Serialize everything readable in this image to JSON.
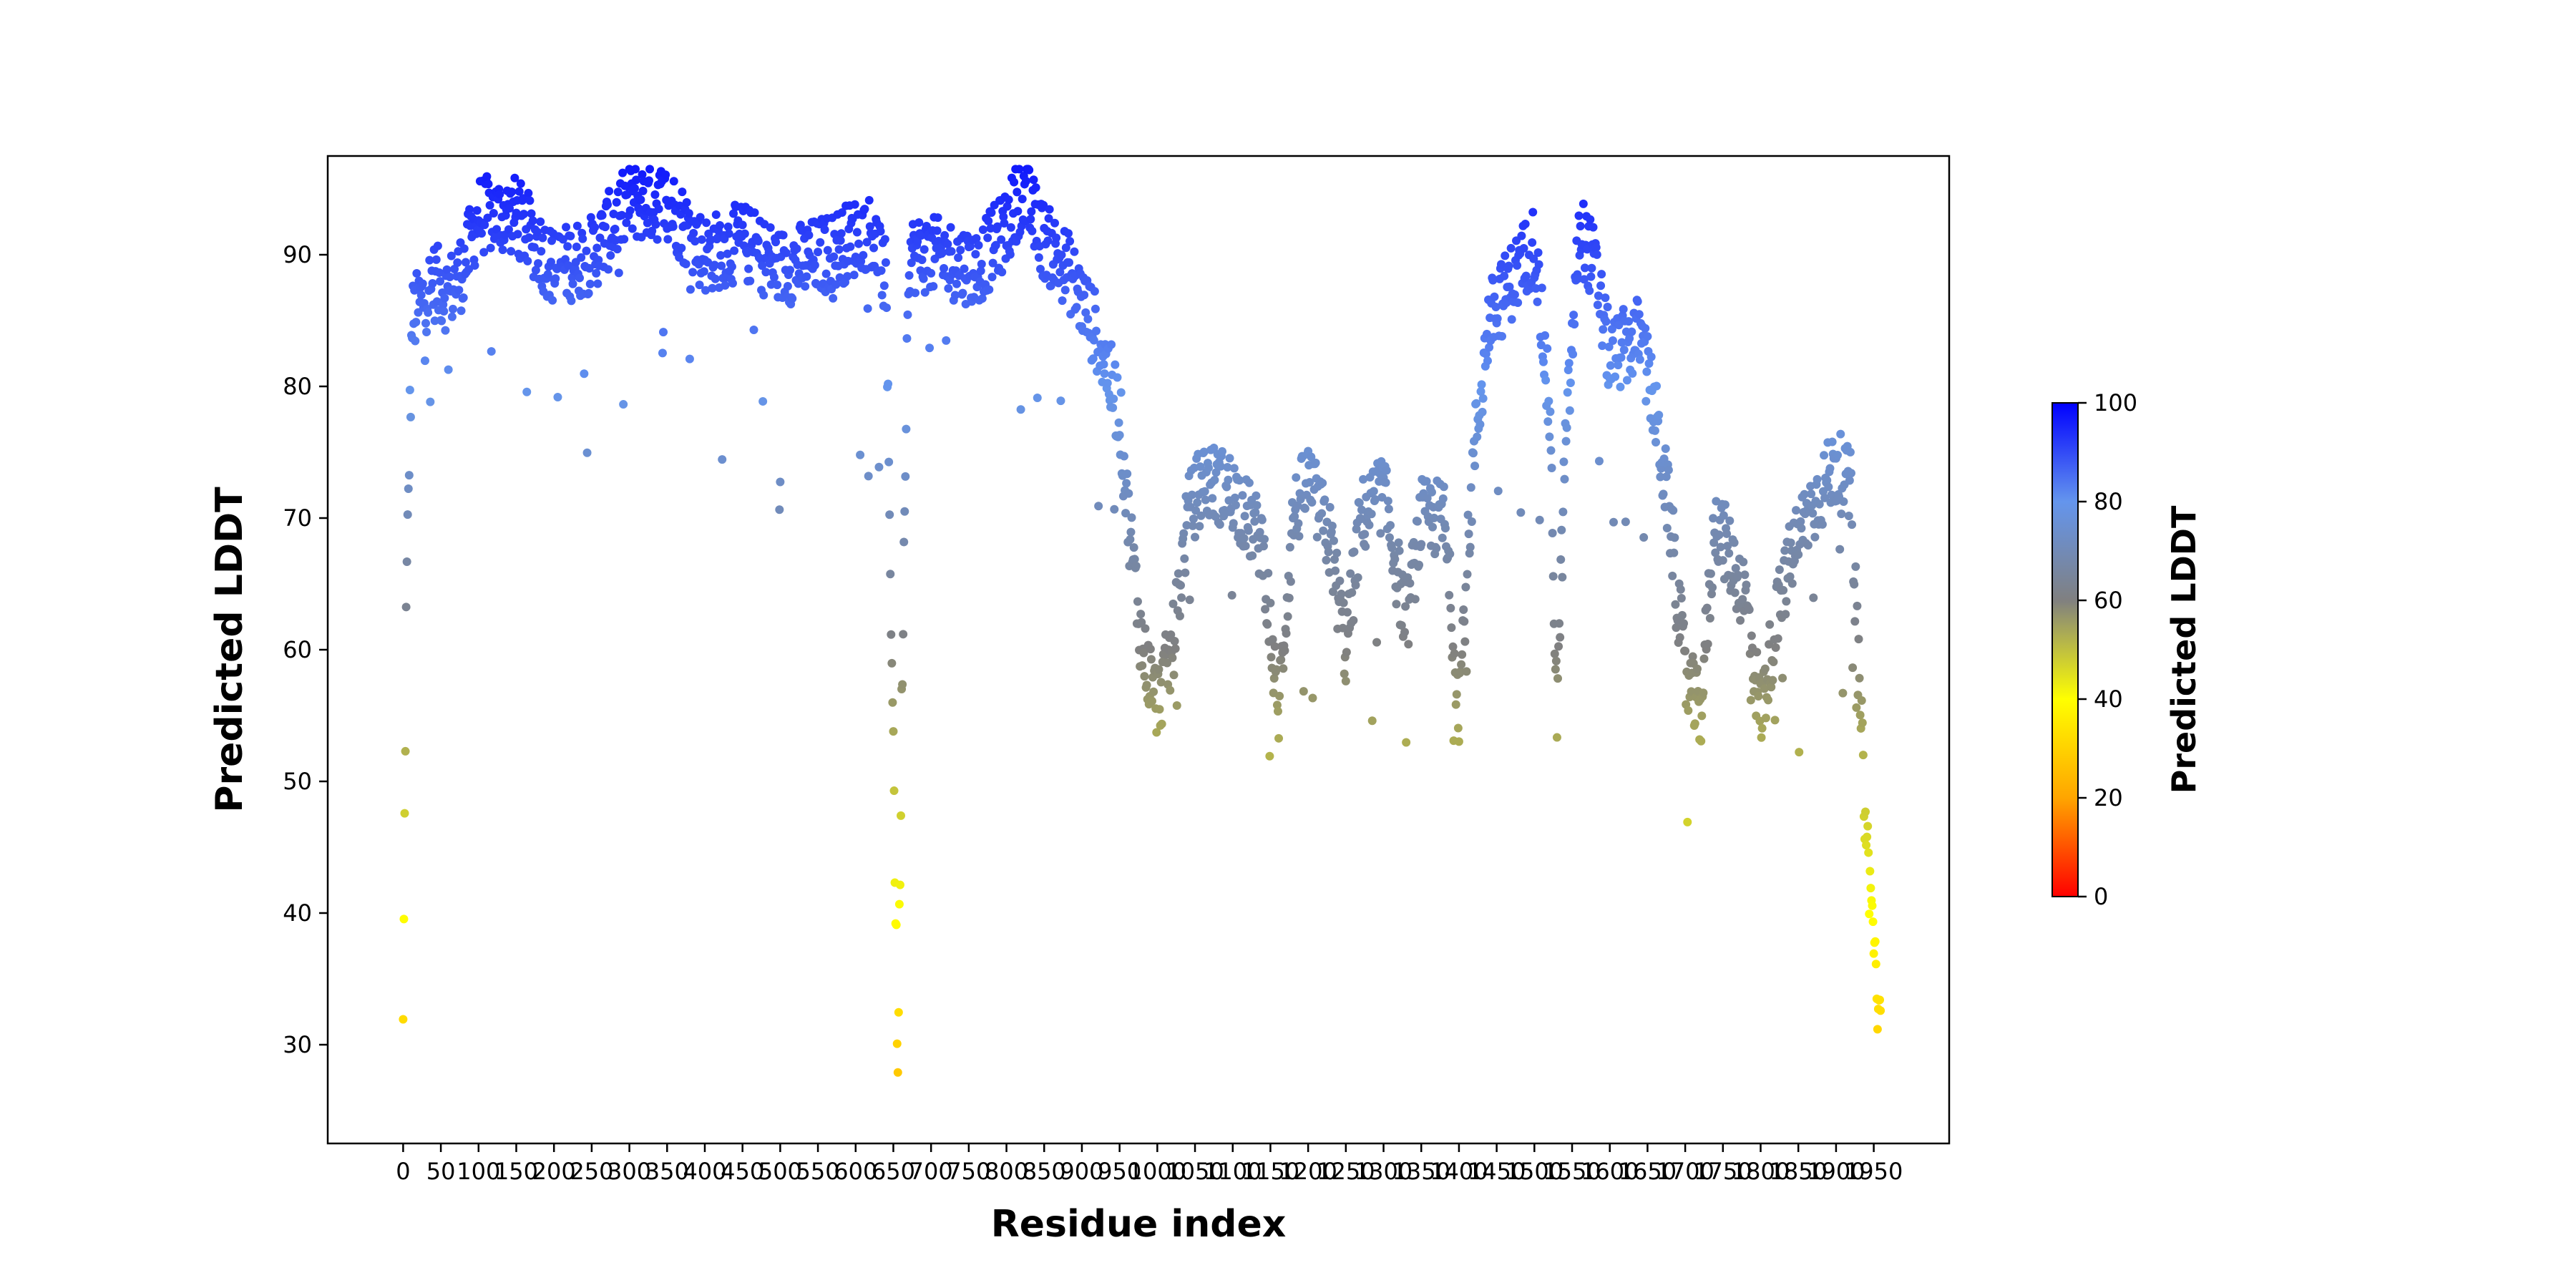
{
  "chart_data": {
    "type": "scatter",
    "title": "",
    "xlabel": "Residue index",
    "ylabel": "Predicted LDDT",
    "xlim": [
      -100,
      2050
    ],
    "ylim": [
      22.5,
      97.5
    ],
    "x_ticks": [
      0,
      50,
      100,
      150,
      200,
      250,
      300,
      350,
      400,
      450,
      500,
      550,
      600,
      650,
      700,
      750,
      800,
      850,
      900,
      950,
      1000,
      1050,
      1100,
      1150,
      1200,
      1250,
      1300,
      1350,
      1400,
      1450,
      1500,
      1550,
      1600,
      1650,
      1700,
      1750,
      1800,
      1850,
      1900,
      1950
    ],
    "y_ticks": [
      30,
      40,
      50,
      60,
      70,
      80,
      90
    ],
    "grid": false,
    "legend": "none",
    "colorbar": {
      "label": "Predicted LDDT",
      "range": [
        0,
        100
      ],
      "ticks": [
        0,
        20,
        40,
        60,
        80,
        100
      ],
      "colors": [
        "#ff0000",
        "#ffa500",
        "#ffff00",
        "#808080",
        "#6495ed",
        "#0000ff"
      ]
    },
    "marker_color_encodes": "y",
    "residue_count": 1960,
    "profile_anchors": [
      [
        0,
        31
      ],
      [
        4,
        62
      ],
      [
        8,
        75
      ],
      [
        12,
        85
      ],
      [
        20,
        86
      ],
      [
        40,
        88
      ],
      [
        60,
        87
      ],
      [
        80,
        89
      ],
      [
        100,
        93
      ],
      [
        150,
        93
      ],
      [
        200,
        89
      ],
      [
        250,
        90
      ],
      [
        300,
        94
      ],
      [
        350,
        94
      ],
      [
        400,
        90
      ],
      [
        450,
        91
      ],
      [
        500,
        89
      ],
      [
        560,
        90
      ],
      [
        620,
        92
      ],
      [
        640,
        88
      ],
      [
        650,
        53
      ],
      [
        656,
        28
      ],
      [
        662,
        60
      ],
      [
        670,
        90
      ],
      [
        700,
        90
      ],
      [
        760,
        89
      ],
      [
        800,
        92
      ],
      [
        820,
        95
      ],
      [
        850,
        91
      ],
      [
        880,
        89
      ],
      [
        920,
        84
      ],
      [
        950,
        78
      ],
      [
        960,
        71
      ],
      [
        980,
        60
      ],
      [
        1000,
        56
      ],
      [
        1020,
        60
      ],
      [
        1040,
        70
      ],
      [
        1060,
        73
      ],
      [
        1100,
        72
      ],
      [
        1140,
        68
      ],
      [
        1160,
        55
      ],
      [
        1180,
        70
      ],
      [
        1200,
        73
      ],
      [
        1230,
        68
      ],
      [
        1250,
        60
      ],
      [
        1270,
        70
      ],
      [
        1300,
        72
      ],
      [
        1330,
        62
      ],
      [
        1350,
        70
      ],
      [
        1380,
        70
      ],
      [
        1400,
        56
      ],
      [
        1420,
        75
      ],
      [
        1440,
        85
      ],
      [
        1480,
        89
      ],
      [
        1500,
        91
      ],
      [
        1520,
        78
      ],
      [
        1530,
        55
      ],
      [
        1540,
        74
      ],
      [
        1560,
        92
      ],
      [
        1580,
        89
      ],
      [
        1600,
        82
      ],
      [
        1640,
        84
      ],
      [
        1660,
        78
      ],
      [
        1680,
        70
      ],
      [
        1700,
        58
      ],
      [
        1720,
        55
      ],
      [
        1740,
        70
      ],
      [
        1760,
        67
      ],
      [
        1780,
        64
      ],
      [
        1800,
        55
      ],
      [
        1820,
        62
      ],
      [
        1840,
        67
      ],
      [
        1860,
        70
      ],
      [
        1880,
        72
      ],
      [
        1900,
        74
      ],
      [
        1920,
        72
      ],
      [
        1930,
        58
      ],
      [
        1940,
        46
      ],
      [
        1950,
        38
      ],
      [
        1959,
        30
      ]
    ]
  },
  "labels": {
    "y_ticks": [
      "30",
      "40",
      "50",
      "60",
      "70",
      "80",
      "90"
    ],
    "x_ticks": [
      "0",
      "50",
      "100",
      "150",
      "200",
      "250",
      "300",
      "350",
      "400",
      "450",
      "500",
      "550",
      "600",
      "650",
      "700",
      "750",
      "800",
      "850",
      "900",
      "950",
      "1000",
      "1050",
      "1100",
      "1150",
      "1200",
      "1250",
      "1300",
      "1350",
      "1400",
      "1450",
      "1500",
      "1550",
      "1600",
      "1650",
      "1700",
      "1750",
      "1800",
      "1850",
      "1900",
      "1950"
    ],
    "colorbar_ticks": [
      "0",
      "20",
      "40",
      "60",
      "80",
      "100"
    ]
  }
}
